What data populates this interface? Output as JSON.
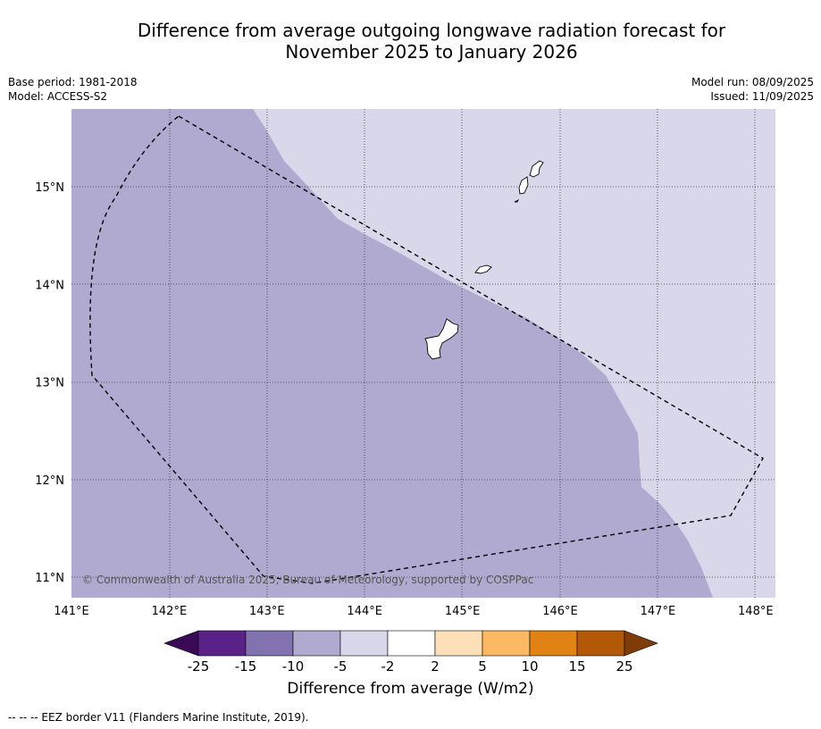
{
  "title_line1": "Difference from average outgoing longwave radiation forecast for",
  "title_line2": "November 2025 to January 2026",
  "meta": {
    "base_period": "Base period: 1981-2018",
    "model": "Model: ACCESS-S2",
    "model_run": "Model run: 08/09/2025",
    "issued": "Issued: 11/09/2025"
  },
  "copyright": "© Commonwealth of Australia 2025, Bureau of Meteorology, supported by COSPPac",
  "footnote": "--  --  -- EEZ border V11 (Flanders Marine Institute, 2019).",
  "axes": {
    "x_ticks": [
      "141°E",
      "142°E",
      "143°E",
      "144°E",
      "145°E",
      "146°E",
      "147°E",
      "148°E"
    ],
    "y_ticks": [
      "15°N",
      "14°N",
      "13°N",
      "12°N",
      "11°N"
    ],
    "lon_range": [
      141,
      148.2
    ],
    "lat_range": [
      10.8,
      15.8
    ]
  },
  "colorbar": {
    "title": "Difference from average (W/m2)",
    "tick_labels": [
      "-25",
      "-15",
      "-10",
      "-5",
      "-2",
      "2",
      "5",
      "10",
      "15",
      "25"
    ],
    "colors": [
      "#3b0a57",
      "#5a2189",
      "#8273b0",
      "#b0aad1",
      "#d8d8ea",
      "#ffffff",
      "#fde0b8",
      "#fdb863",
      "#e08214",
      "#b35806",
      "#7f3b08"
    ]
  },
  "map_colors": {
    "west_region": "#b0aad1",
    "east_region": "#d8d8ea",
    "land": "#ffffff"
  }
}
